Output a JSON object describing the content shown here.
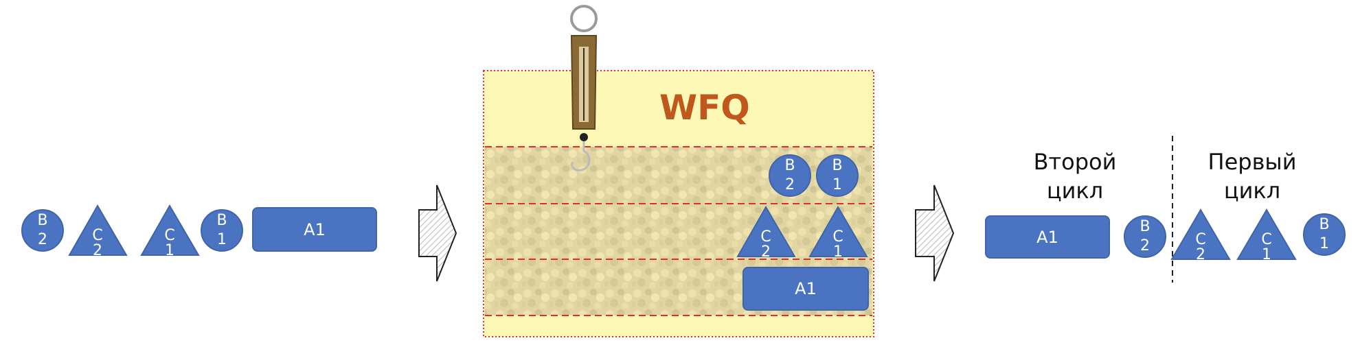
{
  "title": "WFQ",
  "colors": {
    "packet_fill": "#4a74c1",
    "packet_stroke": "#3f64a8",
    "queue_background": "#fdf8b5",
    "title": "#c0581e",
    "dashed_line": "#e22b2b"
  },
  "input_stream": {
    "packets": [
      {
        "shape": "circle",
        "label_top": "B",
        "label_bottom": "2"
      },
      {
        "shape": "triangle",
        "label_top": "C",
        "label_bottom": "2"
      },
      {
        "shape": "triangle",
        "label_top": "C",
        "label_bottom": "1"
      },
      {
        "shape": "circle",
        "label_top": "B",
        "label_bottom": "1"
      },
      {
        "shape": "rectangle",
        "label": "A1"
      }
    ]
  },
  "queues": {
    "icons": [
      "scale-icon",
      "crowd-photo"
    ],
    "queue_b": [
      {
        "shape": "circle",
        "label_top": "B",
        "label_bottom": "2"
      },
      {
        "shape": "circle",
        "label_top": "B",
        "label_bottom": "1"
      }
    ],
    "queue_c": [
      {
        "shape": "triangle",
        "label_top": "C",
        "label_bottom": "2"
      },
      {
        "shape": "triangle",
        "label_top": "C",
        "label_bottom": "1"
      }
    ],
    "queue_a": [
      {
        "shape": "rectangle",
        "label": "A1"
      }
    ]
  },
  "output": {
    "second_cycle_label_line1": "Второй",
    "second_cycle_label_line2": "цикл",
    "first_cycle_label_line1": "Первый",
    "first_cycle_label_line2": "цикл",
    "packets": [
      {
        "shape": "rectangle",
        "label": "A1"
      },
      {
        "shape": "circle",
        "label_top": "B",
        "label_bottom": "2"
      },
      {
        "shape": "triangle",
        "label_top": "C",
        "label_bottom": "2"
      },
      {
        "shape": "triangle",
        "label_top": "C",
        "label_bottom": "1"
      },
      {
        "shape": "circle",
        "label_top": "B",
        "label_bottom": "1"
      }
    ]
  }
}
